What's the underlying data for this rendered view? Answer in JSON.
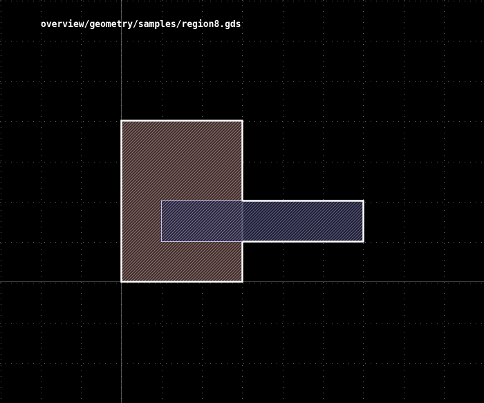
{
  "header": {
    "file_path": "overview/geometry/samples/region8.gds"
  },
  "colors": {
    "background": "#000000",
    "grid_dot": "#6f6f6f",
    "axis_line": "#8c8c8c",
    "shape_outline": "#ffffff",
    "layer_a_fill": "#b08a86",
    "layer_b_fill": "#9a98c8",
    "layer_b_outline": "#c4c2ee"
  },
  "layout": {
    "shapes": [
      {
        "name": "tall-rectangle",
        "layer": "a"
      },
      {
        "name": "horizontal-bar",
        "layer": "b"
      }
    ]
  }
}
